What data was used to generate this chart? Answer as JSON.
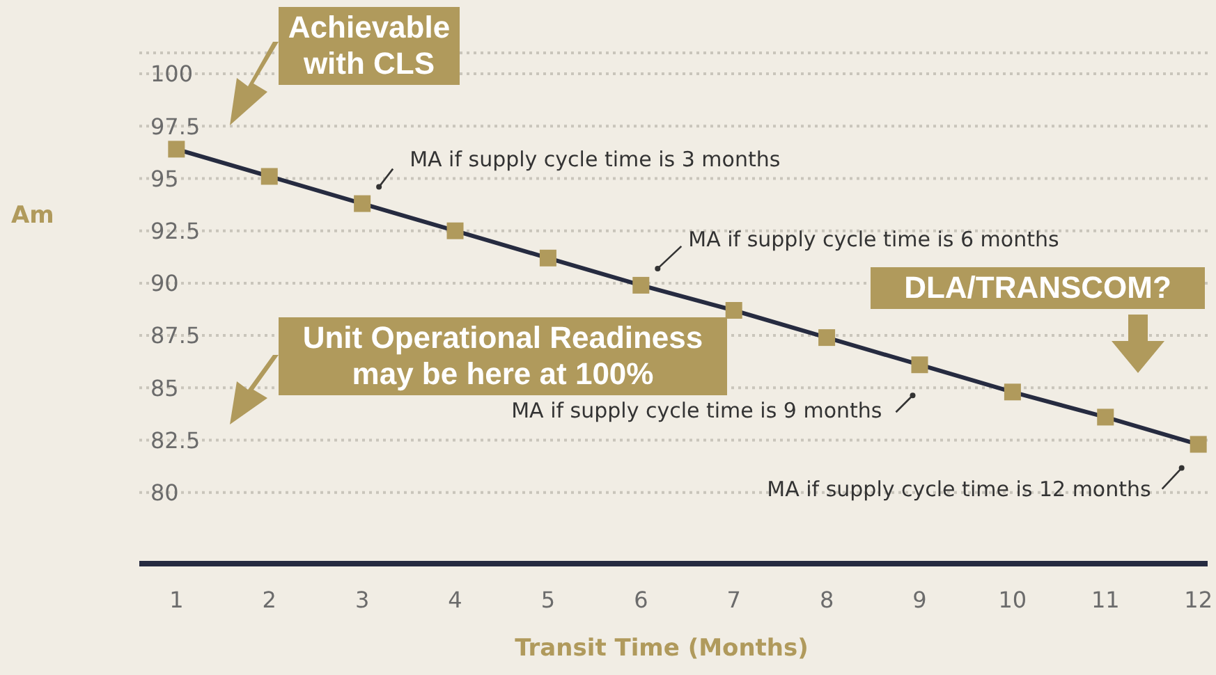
{
  "chart_data": {
    "type": "line",
    "xlabel": "Transit Time (Months)",
    "ylabel": "Am",
    "x": [
      1,
      2,
      3,
      4,
      5,
      6,
      7,
      8,
      9,
      10,
      11,
      12
    ],
    "series": [
      {
        "color": "#262b40",
        "values": [
          96.4,
          95.1,
          93.8,
          92.5,
          91.2,
          89.9,
          88.7,
          87.4,
          86.1,
          84.8,
          83.6,
          82.3
        ]
      }
    ],
    "xlim": [
      0.6,
      12.1
    ],
    "xticks": [
      1,
      2,
      3,
      4,
      5,
      6,
      7,
      8,
      9,
      10,
      11,
      12
    ],
    "ylim": [
      76.6,
      101
    ],
    "yticks": [
      80,
      82.5,
      85,
      87.5,
      90,
      92.5,
      95,
      97.5,
      100
    ],
    "grid": "y",
    "marker": "square",
    "line_style": "solid",
    "annotations": [
      {
        "text": "MA if supply cycle time is 3 months",
        "x": 3,
        "y": 93.8
      },
      {
        "text": "MA if supply cycle time is 6 months",
        "x": 6,
        "y": 89.9
      },
      {
        "text": "MA if supply cycle time is 9 months",
        "x": 9,
        "y": 86.1
      },
      {
        "text": "MA if supply cycle time is 12 months",
        "x": 12,
        "y": 82.3
      },
      "Achievable with CLS",
      "Unit Operational Readiness may be here at 100%",
      "DLA/TRANSCOM?"
    ]
  }
}
